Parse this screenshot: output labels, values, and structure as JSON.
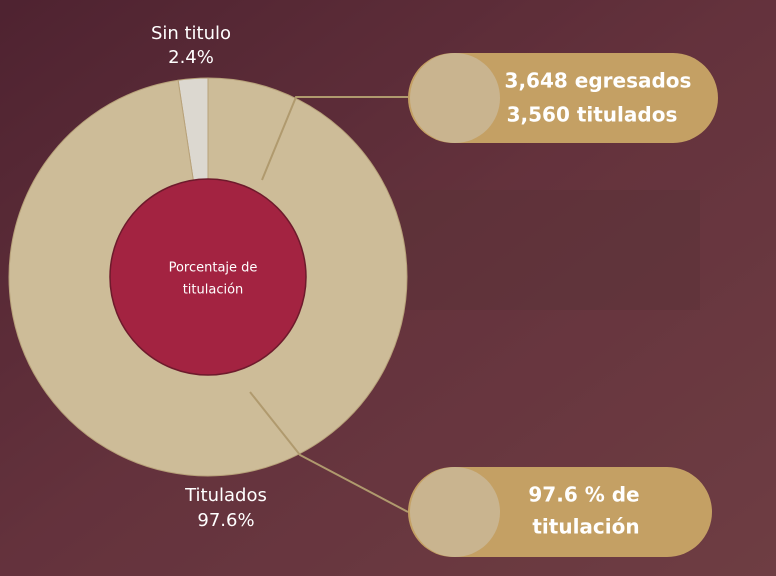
{
  "chart_data": {
    "type": "pie",
    "categories": [
      "Sin titulo",
      "Titulados"
    ],
    "values": [
      2.4,
      97.6
    ],
    "value_labels": [
      "2.4%",
      "97.6%"
    ],
    "colors": [
      "#dcd8d0",
      "#cdbc98"
    ],
    "center_label": [
      "Porcentaje de",
      "titulación"
    ],
    "annotations": [
      {
        "lines": [
          "3,648 egresados",
          "3,560 titulados"
        ]
      },
      {
        "lines": [
          "97.6 % de",
          "titulación"
        ]
      }
    ]
  }
}
